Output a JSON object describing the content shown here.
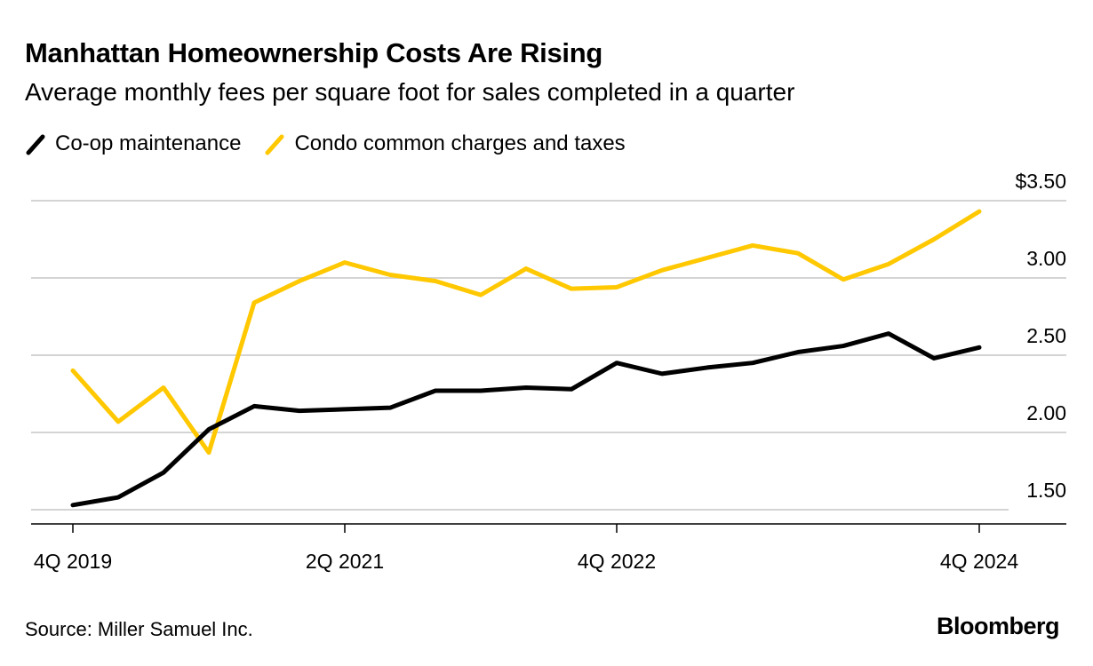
{
  "chart_data": {
    "type": "line",
    "title": "Manhattan Homeownership Costs Are Rising",
    "subtitle": "Average monthly fees per square foot for sales completed in a quarter",
    "xlabel": "",
    "ylabel": "",
    "x": [
      "4Q 2019",
      "1Q 2020",
      "2Q 2020",
      "3Q 2020",
      "4Q 2020",
      "1Q 2021",
      "2Q 2021",
      "3Q 2021",
      "4Q 2021",
      "1Q 2022",
      "2Q 2022",
      "3Q 2022",
      "4Q 2022",
      "1Q 2023",
      "2Q 2023",
      "3Q 2023",
      "4Q 2023",
      "1Q 2024",
      "2Q 2024",
      "3Q 2024",
      "4Q 2024"
    ],
    "x_tick_labels": [
      "4Q 2019",
      "2Q 2021",
      "4Q 2022",
      "4Q 2024"
    ],
    "x_tick_indices": [
      0,
      6,
      12,
      20
    ],
    "y_ticks": [
      1.5,
      2.0,
      2.5,
      3.0,
      3.5
    ],
    "y_tick_labels": [
      "1.50",
      "2.00",
      "2.50",
      "3.00",
      "$3.50"
    ],
    "ylim": [
      1.41,
      3.5
    ],
    "grid": true,
    "legend_placement": "top-left",
    "series": [
      {
        "name": "Co-op maintenance",
        "color": "#000000",
        "values": [
          1.53,
          1.58,
          1.74,
          2.02,
          2.17,
          2.14,
          2.15,
          2.16,
          2.27,
          2.27,
          2.29,
          2.28,
          2.45,
          2.38,
          2.42,
          2.45,
          2.52,
          2.56,
          2.64,
          2.48,
          2.55
        ]
      },
      {
        "name": "Condo common charges and taxes",
        "color": "#FFC800",
        "values": [
          2.4,
          2.07,
          2.29,
          1.87,
          2.84,
          2.98,
          3.1,
          3.02,
          2.98,
          2.89,
          3.06,
          2.93,
          2.94,
          3.05,
          3.13,
          3.21,
          3.16,
          2.99,
          3.09,
          3.25,
          3.43
        ]
      }
    ]
  },
  "footer": {
    "source": "Source: Miller Samuel Inc.",
    "logo": "Bloomberg"
  }
}
